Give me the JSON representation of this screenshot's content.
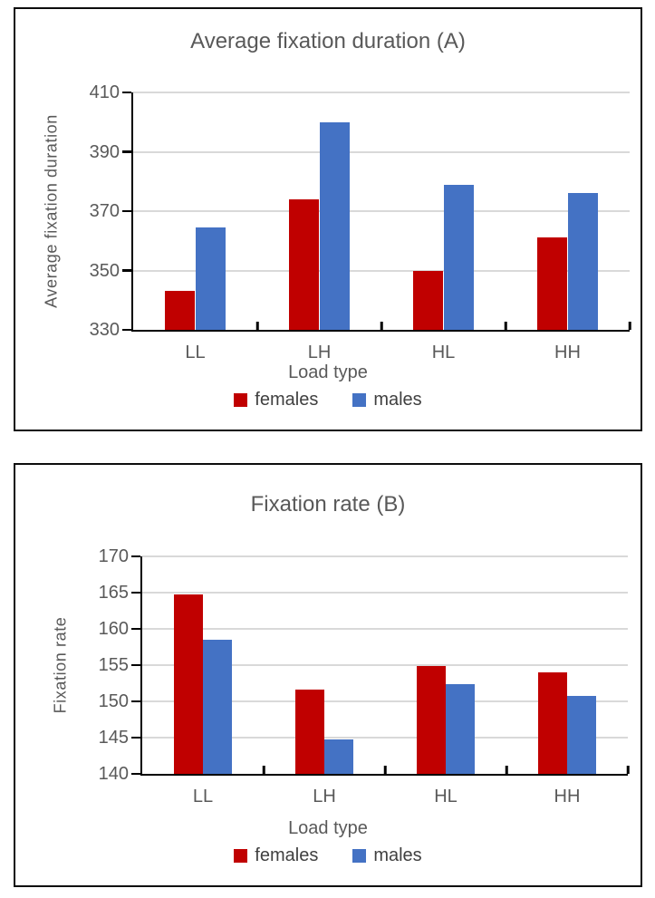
{
  "chart_data": [
    {
      "type": "bar",
      "panel_id": "A",
      "title": "Average fixation duration (A)",
      "xlabel": "Load type",
      "ylabel": "Average fixation duration",
      "categories": [
        "LL",
        "LH",
        "HL",
        "HH"
      ],
      "series": [
        {
          "name": "females",
          "color": "#c00000",
          "values": [
            343,
            374,
            350,
            361
          ]
        },
        {
          "name": "males",
          "color": "#4472c4",
          "values": [
            364.5,
            400,
            379,
            376
          ]
        }
      ],
      "ylim": [
        330,
        410
      ],
      "y_ticks": [
        330,
        350,
        370,
        390,
        410
      ],
      "grid": true,
      "legend_position": "bottom"
    },
    {
      "type": "bar",
      "panel_id": "B",
      "title": "Fixation rate (B)",
      "xlabel": "Load type",
      "ylabel": "Fixation rate",
      "categories": [
        "LL",
        "LH",
        "HL",
        "HH"
      ],
      "series": [
        {
          "name": "females",
          "color": "#c00000",
          "values": [
            164.8,
            151.6,
            154.9,
            154.0
          ]
        },
        {
          "name": "males",
          "color": "#4472c4",
          "values": [
            158.5,
            144.7,
            152.4,
            150.7
          ]
        }
      ],
      "ylim": [
        140,
        170
      ],
      "y_ticks": [
        140,
        145,
        150,
        155,
        160,
        165,
        170
      ],
      "grid": true,
      "legend_position": "bottom"
    }
  ],
  "style": {
    "grid_color": "#d9d9d9",
    "axis_color": "#000000",
    "label_color": "#595959",
    "legend_text_color": "#404040"
  }
}
